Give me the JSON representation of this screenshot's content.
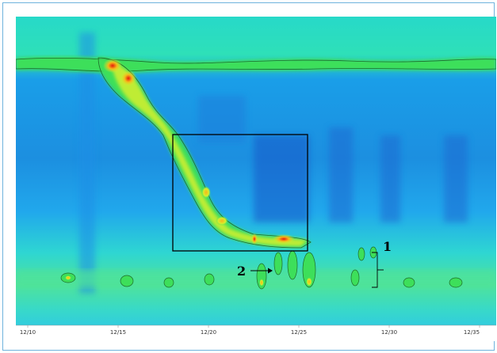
{
  "chart_data": {
    "type": "heatmap",
    "title": "",
    "xlabel": "",
    "ylabel": "",
    "x_ticks": [
      "12/10",
      "12/15",
      "12/20",
      "12/25",
      "12/30",
      "12/35"
    ],
    "colorscale": [
      "#1a78d6",
      "#2db3f0",
      "#27e6c4",
      "#3ddf5a",
      "#d6ef2d",
      "#f7b51a",
      "#e61a0a"
    ],
    "annotations": [
      {
        "label": "1",
        "description": "bracket marking repeated bands"
      },
      {
        "label": "2",
        "description": "arrow pointing to bands"
      }
    ],
    "highlight_box": {
      "label": "",
      "description": "rectangle around diagonal high-intensity ridge"
    }
  }
}
